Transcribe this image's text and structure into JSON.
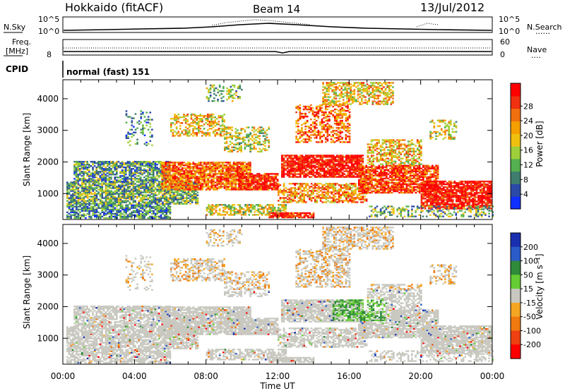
{
  "header": {
    "title": "Hokkaido (fitACF)",
    "beam": "Beam 14",
    "date": "13/Jul/2012"
  },
  "status_panels": {
    "nsky_label": "N.Sky",
    "nsearch_label": "N.Search",
    "freq_label_line1": "Freq.",
    "freq_label_line2": "[MHz]",
    "nave_label": "Nave",
    "cpid_label": "CPID",
    "cpid_value": "normal (fast) 151",
    "noise_ticks_left": [
      "10^5",
      "10^0"
    ],
    "noise_ticks_right": [
      "10^5",
      "10^0"
    ],
    "freq_tick": "8",
    "nave_ticks": [
      "60",
      "0"
    ],
    "dotted_legend": "......",
    "dotted_legend_short": "...."
  },
  "chart_data": [
    {
      "type": "heatmap",
      "panel": "power",
      "ylabel": "Slant Range [km]",
      "xlabel": "Time UT",
      "yticks": [
        "1000",
        "2000",
        "3000",
        "4000"
      ],
      "xticks": [
        "00:00",
        "04:00",
        "08:00",
        "12:00",
        "16:00",
        "20:00",
        "00:00"
      ],
      "colorbar": {
        "label": "Power [dB]",
        "ticks": [
          "4",
          "8",
          "12",
          "16",
          "20",
          "24",
          "28"
        ],
        "colors": [
          "#1030ff",
          "#2b4aa8",
          "#3f7d6e",
          "#55b050",
          "#9ecf3a",
          "#f0c010",
          "#f5a000",
          "#f07010",
          "#f03010",
          "#ff0000"
        ]
      }
    },
    {
      "type": "heatmap",
      "panel": "velocity",
      "ylabel": "Slant Range [km]",
      "xlabel": "Time UT",
      "yticks": [
        "1000",
        "2000",
        "3000",
        "4000"
      ],
      "xticks": [
        "00:00",
        "04:00",
        "08:00",
        "12:00",
        "16:00",
        "20:00",
        "00:00"
      ],
      "colorbar": {
        "label": "Velocity [m s⁻¹]",
        "ticks": [
          "200",
          "100",
          "50",
          "15",
          "-15",
          "-50",
          "-100",
          "-200"
        ],
        "colors": [
          "#1a2fb0",
          "#2a5bc8",
          "#2f8a3a",
          "#66cc33",
          "#c8c8c0",
          "#f4a623",
          "#f07a10",
          "#ee4010",
          "#ff0000"
        ]
      }
    }
  ]
}
